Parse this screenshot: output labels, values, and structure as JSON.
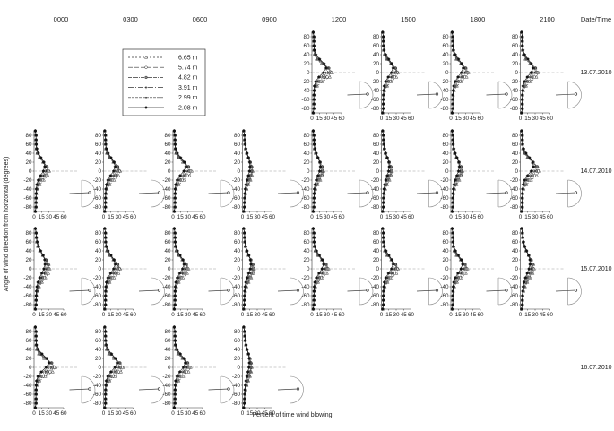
{
  "figure": {
    "time_headers": [
      "0000",
      "0300",
      "0600",
      "0900",
      "1200",
      "1500",
      "1800",
      "2100"
    ],
    "date_time_header": "Date/Time",
    "dates": [
      "13.07.2010",
      "14.07.2010",
      "15.07.2010",
      "16.07.2010"
    ],
    "ylabel": "Angle of wind direction from horizontal (degrees)",
    "xlabel": "Percent of time wind blowing",
    "legend": [
      "6.65 m",
      "5.74 m",
      "4.82 m",
      "3.91 m",
      "2.99 m",
      "2.08 m"
    ]
  },
  "chart_data": {
    "type": "line",
    "x_ticks": [
      0,
      15,
      30,
      45,
      60
    ],
    "y_ticks": [
      80,
      60,
      40,
      20,
      0,
      -20,
      -40,
      -60,
      -80
    ],
    "xlim": [
      0,
      60
    ],
    "ylim": [
      -90,
      90
    ],
    "grid": false,
    "legend_placement": "top-left",
    "y": [
      -90,
      -80,
      -70,
      -60,
      -50,
      -40,
      -30,
      -20,
      -10,
      0,
      10,
      20,
      30,
      40,
      50,
      60,
      70,
      80,
      90
    ],
    "series_names": [
      "6.65 m",
      "5.74 m",
      "4.82 m",
      "3.91 m",
      "2.99 m",
      "2.08 m"
    ],
    "panels": [
      {
        "date": "13.07.2010",
        "time": "1200",
        "peak": 5,
        "spread": 2.2,
        "amp": 38
      },
      {
        "date": "13.07.2010",
        "time": "1500",
        "peak": 5,
        "spread": 2.5,
        "amp": 30
      },
      {
        "date": "13.07.2010",
        "time": "1800",
        "peak": 5,
        "spread": 2.5,
        "amp": 32
      },
      {
        "date": "13.07.2010",
        "time": "2100",
        "peak": 5,
        "spread": 2.4,
        "amp": 33
      },
      {
        "date": "14.07.2010",
        "time": "0000",
        "peak": 5,
        "spread": 2.6,
        "amp": 27
      },
      {
        "date": "14.07.2010",
        "time": "0300",
        "peak": 5,
        "spread": 2.6,
        "amp": 30
      },
      {
        "date": "14.07.2010",
        "time": "0600",
        "peak": 5,
        "spread": 2.4,
        "amp": 34
      },
      {
        "date": "14.07.2010",
        "time": "0900",
        "peak": 5,
        "spread": 3.5,
        "amp": 17
      },
      {
        "date": "14.07.2010",
        "time": "1200",
        "peak": 5,
        "spread": 3.0,
        "amp": 20
      },
      {
        "date": "14.07.2010",
        "time": "1500",
        "peak": 5,
        "spread": 3.2,
        "amp": 18
      },
      {
        "date": "14.07.2010",
        "time": "1800",
        "peak": 5,
        "spread": 3.0,
        "amp": 20
      },
      {
        "date": "14.07.2010",
        "time": "2100",
        "peak": 7,
        "spread": 2.6,
        "amp": 35
      },
      {
        "date": "15.07.2010",
        "time": "0000",
        "peak": 7,
        "spread": 3.4,
        "amp": 28
      },
      {
        "date": "15.07.2010",
        "time": "0300",
        "peak": 5,
        "spread": 2.6,
        "amp": 30
      },
      {
        "date": "15.07.2010",
        "time": "0600",
        "peak": 5,
        "spread": 2.6,
        "amp": 28
      },
      {
        "date": "15.07.2010",
        "time": "0900",
        "peak": 5,
        "spread": 3.2,
        "amp": 20
      },
      {
        "date": "15.07.2010",
        "time": "1200",
        "peak": 5,
        "spread": 2.6,
        "amp": 30
      },
      {
        "date": "15.07.2010",
        "time": "1500",
        "peak": 5,
        "spread": 2.6,
        "amp": 30
      },
      {
        "date": "15.07.2010",
        "time": "1800",
        "peak": 5,
        "spread": 2.6,
        "amp": 30
      },
      {
        "date": "15.07.2010",
        "time": "2100",
        "peak": 8,
        "spread": 3.5,
        "amp": 24
      },
      {
        "date": "16.07.2010",
        "time": "0000",
        "peak": 5,
        "spread": 2.2,
        "amp": 40
      },
      {
        "date": "16.07.2010",
        "time": "0300",
        "peak": 5,
        "spread": 2.4,
        "amp": 36
      },
      {
        "date": "16.07.2010",
        "time": "0600",
        "peak": 5,
        "spread": 2.4,
        "amp": 32
      },
      {
        "date": "16.07.2010",
        "time": "0900",
        "peak": 6,
        "spread": 3.8,
        "amp": 15
      }
    ]
  }
}
